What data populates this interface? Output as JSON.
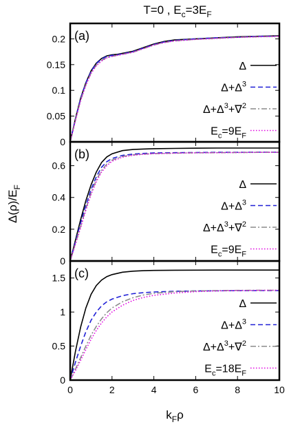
{
  "figure_title": {
    "main": "T=0 , E",
    "sub": "c",
    "eq": "=3E",
    "sub2": "F"
  },
  "shared_ylabel": {
    "pre": "Δ(ρ)/E",
    "sub": "F"
  },
  "shared_xlabel": {
    "pre": "k",
    "sub": "F",
    "post": "ρ"
  },
  "colors": {
    "delta": "#000000",
    "delta_cubed": "#1f1fd6",
    "delta_cubed_grad": "#8a8a8a",
    "ec_large": "#e000e0"
  },
  "chart_data": [
    {
      "type": "line",
      "panel_label": "(a)",
      "xlim": [
        0,
        10
      ],
      "ylim": [
        0,
        0.23
      ],
      "xticks": [
        0,
        2,
        4,
        6,
        8,
        10
      ],
      "yticks": [
        0,
        0.05,
        0.1,
        0.15,
        0.2
      ],
      "ytick_labels": [
        "0",
        "0.05",
        "0.1",
        "0.15",
        "0.2"
      ],
      "show_xtick_labels": false,
      "legend_position": "right",
      "series": [
        {
          "name": "Δ",
          "style": "solid",
          "color": "#000000",
          "x": [
            0,
            0.25,
            0.5,
            0.75,
            1.0,
            1.25,
            1.5,
            1.75,
            2.0,
            2.25,
            2.5,
            3.0,
            3.5,
            4.0,
            4.5,
            5.0,
            6.0,
            7.0,
            8.0,
            9.0,
            10.0
          ],
          "y": [
            0,
            0.045,
            0.085,
            0.115,
            0.138,
            0.153,
            0.162,
            0.167,
            0.169,
            0.17,
            0.172,
            0.176,
            0.183,
            0.19,
            0.195,
            0.198,
            0.2,
            0.202,
            0.204,
            0.205,
            0.206
          ]
        },
        {
          "name": "Δ+Δ³",
          "legend": {
            "pre": "Δ+Δ",
            "sup": "3",
            "post": ""
          },
          "style": "dashed",
          "color": "#1f1fd6",
          "x": [
            0,
            0.25,
            0.5,
            0.75,
            1.0,
            1.25,
            1.5,
            1.75,
            2.0,
            2.25,
            2.5,
            3.0,
            3.5,
            4.0,
            4.5,
            5.0,
            6.0,
            7.0,
            8.0,
            9.0,
            10.0
          ],
          "y": [
            0,
            0.044,
            0.084,
            0.114,
            0.137,
            0.152,
            0.161,
            0.166,
            0.168,
            0.169,
            0.171,
            0.175,
            0.182,
            0.189,
            0.194,
            0.197,
            0.2,
            0.202,
            0.203,
            0.205,
            0.205
          ]
        },
        {
          "name": "Δ+Δ³+∇²",
          "legend": {
            "pre": "Δ+Δ",
            "sup": "3",
            "post": "+∇",
            "sup2": "2"
          },
          "style": "dashdot",
          "color": "#8a8a8a",
          "x": [
            0,
            0.25,
            0.5,
            0.75,
            1.0,
            1.25,
            1.5,
            1.75,
            2.0,
            2.25,
            2.5,
            3.0,
            3.5,
            4.0,
            4.5,
            5.0,
            6.0,
            7.0,
            8.0,
            9.0,
            10.0
          ],
          "y": [
            0,
            0.042,
            0.081,
            0.111,
            0.134,
            0.149,
            0.158,
            0.164,
            0.166,
            0.168,
            0.17,
            0.174,
            0.181,
            0.188,
            0.193,
            0.196,
            0.199,
            0.201,
            0.203,
            0.204,
            0.205
          ]
        },
        {
          "name": "Ec=9EF",
          "legend": {
            "pre": "E",
            "sub": "c",
            "post": "=9E",
            "sub2": "F"
          },
          "style": "dotted",
          "color": "#e000e0",
          "x": [
            0,
            0.25,
            0.5,
            0.75,
            1.0,
            1.25,
            1.5,
            1.75,
            2.0,
            2.25,
            2.5,
            3.0,
            3.5,
            4.0,
            4.5,
            5.0,
            6.0,
            7.0,
            8.0,
            9.0,
            10.0
          ],
          "y": [
            0,
            0.041,
            0.08,
            0.11,
            0.133,
            0.148,
            0.157,
            0.163,
            0.166,
            0.168,
            0.17,
            0.174,
            0.181,
            0.188,
            0.193,
            0.196,
            0.199,
            0.201,
            0.203,
            0.204,
            0.205
          ]
        }
      ]
    },
    {
      "type": "line",
      "panel_label": "(b)",
      "xlim": [
        0,
        10
      ],
      "ylim": [
        0,
        0.75
      ],
      "xticks": [
        0,
        2,
        4,
        6,
        8,
        10
      ],
      "yticks": [
        0,
        0.2,
        0.4,
        0.6
      ],
      "ytick_labels": [
        "0",
        "0.2",
        "0.4",
        "0.6"
      ],
      "show_xtick_labels": false,
      "legend_position": "right",
      "series": [
        {
          "name": "Δ",
          "style": "solid",
          "color": "#000000",
          "x": [
            0,
            0.25,
            0.5,
            0.75,
            1.0,
            1.25,
            1.5,
            1.75,
            2.0,
            2.5,
            3.0,
            3.5,
            4.0,
            5.0,
            6.0,
            7.0,
            8.0,
            9.0,
            10.0
          ],
          "y": [
            0,
            0.13,
            0.26,
            0.38,
            0.48,
            0.56,
            0.62,
            0.655,
            0.675,
            0.695,
            0.702,
            0.705,
            0.707,
            0.709,
            0.71,
            0.711,
            0.711,
            0.711,
            0.711
          ]
        },
        {
          "name": "Δ+Δ³",
          "legend": {
            "pre": "Δ+Δ",
            "sup": "3",
            "post": ""
          },
          "style": "dashed",
          "color": "#1f1fd6",
          "x": [
            0,
            0.25,
            0.5,
            0.75,
            1.0,
            1.25,
            1.5,
            1.75,
            2.0,
            2.5,
            3.0,
            3.5,
            4.0,
            5.0,
            6.0,
            7.0,
            8.0,
            9.0,
            10.0
          ],
          "y": [
            0,
            0.12,
            0.24,
            0.35,
            0.45,
            0.53,
            0.59,
            0.625,
            0.645,
            0.665,
            0.673,
            0.677,
            0.68,
            0.682,
            0.683,
            0.684,
            0.684,
            0.685,
            0.685
          ]
        },
        {
          "name": "Δ+Δ³+∇²",
          "legend": {
            "pre": "Δ+Δ",
            "sup": "3",
            "post": "+∇",
            "sup2": "2"
          },
          "style": "dashdot",
          "color": "#8a8a8a",
          "x": [
            0,
            0.25,
            0.5,
            0.75,
            1.0,
            1.25,
            1.5,
            1.75,
            2.0,
            2.5,
            3.0,
            3.5,
            4.0,
            5.0,
            6.0,
            7.0,
            8.0,
            9.0,
            10.0
          ],
          "y": [
            0,
            0.11,
            0.22,
            0.33,
            0.43,
            0.51,
            0.57,
            0.61,
            0.635,
            0.658,
            0.668,
            0.673,
            0.676,
            0.679,
            0.681,
            0.682,
            0.683,
            0.684,
            0.684
          ]
        },
        {
          "name": "Ec=9EF",
          "legend": {
            "pre": "E",
            "sub": "c",
            "post": "=9E",
            "sub2": "F"
          },
          "style": "dotted",
          "color": "#e000e0",
          "x": [
            0,
            0.25,
            0.5,
            0.75,
            1.0,
            1.25,
            1.5,
            1.75,
            2.0,
            2.5,
            3.0,
            3.5,
            4.0,
            5.0,
            6.0,
            7.0,
            8.0,
            9.0,
            10.0
          ],
          "y": [
            0,
            0.105,
            0.21,
            0.32,
            0.42,
            0.5,
            0.56,
            0.6,
            0.628,
            0.654,
            0.666,
            0.672,
            0.676,
            0.679,
            0.681,
            0.682,
            0.683,
            0.684,
            0.684
          ]
        }
      ]
    },
    {
      "type": "line",
      "panel_label": "(c)",
      "xlim": [
        0,
        10
      ],
      "ylim": [
        0,
        1.75
      ],
      "xticks": [
        0,
        2,
        4,
        6,
        8,
        10
      ],
      "xtick_labels": [
        "0",
        "2",
        "4",
        "6",
        "8",
        "10"
      ],
      "yticks": [
        0,
        0.5,
        1,
        1.5
      ],
      "ytick_labels": [
        "0",
        "0.5",
        "1",
        "1.5"
      ],
      "show_xtick_labels": true,
      "legend_position": "right",
      "series": [
        {
          "name": "Δ",
          "style": "solid",
          "color": "#000000",
          "x": [
            0,
            0.25,
            0.5,
            0.75,
            1.0,
            1.25,
            1.5,
            1.75,
            2.0,
            2.5,
            3.0,
            3.5,
            4.0,
            5.0,
            6.0,
            7.0,
            8.0,
            9.0,
            10.0
          ],
          "y": [
            0,
            0.42,
            0.78,
            1.06,
            1.26,
            1.39,
            1.47,
            1.52,
            1.55,
            1.585,
            1.6,
            1.607,
            1.611,
            1.614,
            1.615,
            1.616,
            1.616,
            1.616,
            1.616
          ]
        },
        {
          "name": "Δ+Δ³",
          "legend": {
            "pre": "Δ+Δ",
            "sup": "3",
            "post": ""
          },
          "style": "dashed",
          "color": "#1f1fd6",
          "x": [
            0,
            0.25,
            0.5,
            0.75,
            1.0,
            1.25,
            1.5,
            1.75,
            2.0,
            2.5,
            3.0,
            3.5,
            4.0,
            5.0,
            6.0,
            7.0,
            8.0,
            9.0,
            10.0
          ],
          "y": [
            0,
            0.26,
            0.5,
            0.71,
            0.88,
            1.0,
            1.09,
            1.15,
            1.19,
            1.24,
            1.27,
            1.285,
            1.295,
            1.305,
            1.31,
            1.312,
            1.314,
            1.315,
            1.315
          ]
        },
        {
          "name": "Δ+Δ³+∇²",
          "legend": {
            "pre": "Δ+Δ",
            "sup": "3",
            "post": "+∇",
            "sup2": "2"
          },
          "style": "dashdot",
          "color": "#8a8a8a",
          "x": [
            0,
            0.25,
            0.5,
            0.75,
            1.0,
            1.25,
            1.5,
            1.75,
            2.0,
            2.5,
            3.0,
            3.5,
            4.0,
            5.0,
            6.0,
            7.0,
            8.0,
            9.0,
            10.0
          ],
          "y": [
            0,
            0.16,
            0.33,
            0.5,
            0.66,
            0.79,
            0.9,
            0.99,
            1.06,
            1.15,
            1.21,
            1.25,
            1.275,
            1.3,
            1.31,
            1.315,
            1.318,
            1.32,
            1.32
          ]
        },
        {
          "name": "Ec=18EF",
          "legend": {
            "pre": "E",
            "sub": "c",
            "post": "=18E",
            "sub2": "F"
          },
          "style": "dotted",
          "color": "#e000e0",
          "x": [
            0,
            0.25,
            0.5,
            0.75,
            1.0,
            1.25,
            1.5,
            1.75,
            2.0,
            2.5,
            3.0,
            3.5,
            4.0,
            5.0,
            6.0,
            7.0,
            8.0,
            9.0,
            10.0
          ],
          "y": [
            0,
            0.14,
            0.29,
            0.45,
            0.6,
            0.73,
            0.84,
            0.93,
            1.0,
            1.1,
            1.17,
            1.215,
            1.245,
            1.28,
            1.3,
            1.31,
            1.315,
            1.318,
            1.32
          ]
        }
      ]
    }
  ]
}
